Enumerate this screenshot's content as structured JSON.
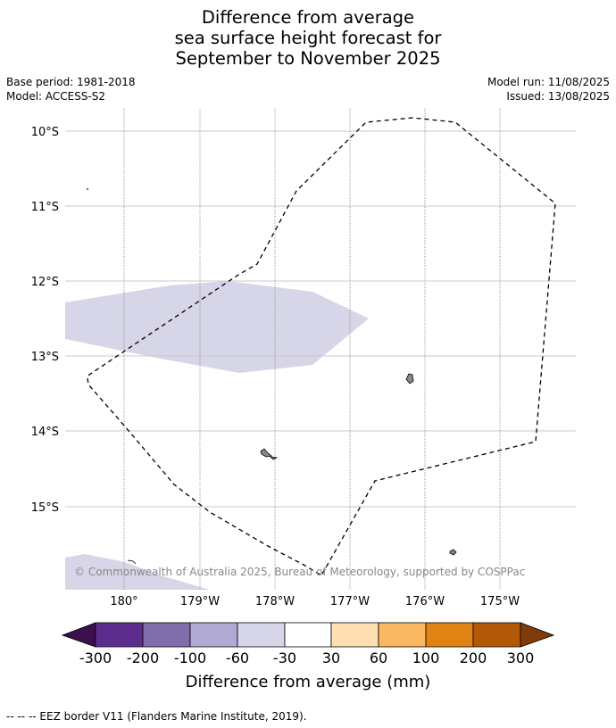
{
  "title": {
    "line1": "Difference from average",
    "line2": "sea surface height forecast for",
    "line3": "September to November 2025"
  },
  "meta": {
    "base_period": "Base period: 1981-2018",
    "model": "Model: ACCESS-S2",
    "model_run": "Model run: 11/08/2025",
    "issued": "Issued: 13/08/2025"
  },
  "map": {
    "lat_labels": [
      "10°S",
      "11°S",
      "12°S",
      "13°S",
      "14°S",
      "15°S"
    ],
    "lon_labels": [
      "180°",
      "179°W",
      "178°W",
      "177°W",
      "176°W",
      "175°W"
    ],
    "copyright": "© Commonwealth of Australia 2025, Bureau of Meteorology, supported by COSPPac",
    "colors": {
      "anomaly_fill": "#d6d6e8",
      "land_fill": "#888888",
      "gridline_lat": "#c8c8c8",
      "gridline_lon": "#888888"
    }
  },
  "legend": {
    "title": "Difference from average (mm)",
    "ticks": [
      "-300",
      "-200",
      "-100",
      "-60",
      "-30",
      "30",
      "60",
      "100",
      "200",
      "300"
    ],
    "colors": [
      "#3b0f50",
      "#5c2d8c",
      "#7f6eaa",
      "#b0aad2",
      "#d6d6e8",
      "#ffffff",
      "#fee0b2",
      "#fbb862",
      "#e08214",
      "#b35806",
      "#7f3b08"
    ]
  },
  "footer": "-- -- -- EEZ border V11 (Flanders Marine Institute, 2019)."
}
